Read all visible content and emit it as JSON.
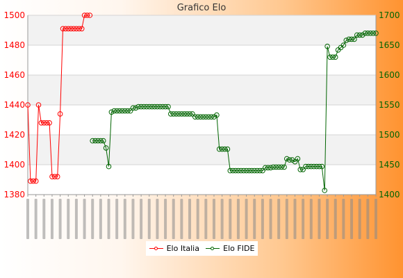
{
  "chart_data": {
    "type": "line",
    "title": "Grafico Elo",
    "xlabel": "",
    "ylabel": "",
    "grid": true,
    "legend_position": "bottom",
    "left_axis": {
      "ylim": [
        1380,
        1500
      ],
      "ticks": [
        1380,
        1400,
        1420,
        1440,
        1460,
        1480,
        1500
      ],
      "color": "#ff0000"
    },
    "right_axis": {
      "ylim": [
        1400,
        1700
      ],
      "ticks": [
        1400,
        1450,
        1500,
        1550,
        1600,
        1650,
        1700
      ],
      "color": "#006400"
    },
    "x_count": 130,
    "x_labels_note": "rotated date labels are illegible in the screenshot",
    "series": [
      {
        "name": "Elo Italia",
        "axis": "left",
        "color": "#ff0000",
        "points": [
          [
            0,
            1440
          ],
          [
            1,
            1389
          ],
          [
            2,
            1389
          ],
          [
            3,
            1389
          ],
          [
            4,
            1440
          ],
          [
            5,
            1428
          ],
          [
            6,
            1428
          ],
          [
            7,
            1428
          ],
          [
            8,
            1428
          ],
          [
            9,
            1392
          ],
          [
            10,
            1392
          ],
          [
            11,
            1392
          ],
          [
            12,
            1434
          ],
          [
            13,
            1491
          ],
          [
            14,
            1491
          ],
          [
            15,
            1491
          ],
          [
            16,
            1491
          ],
          [
            17,
            1491
          ],
          [
            18,
            1491
          ],
          [
            19,
            1491
          ],
          [
            20,
            1491
          ],
          [
            21,
            1500
          ],
          [
            22,
            1500
          ],
          [
            23,
            1500
          ]
        ]
      },
      {
        "name": "Elo FIDE",
        "axis": "right",
        "color": "#006400",
        "points": [
          [
            24,
            1490
          ],
          [
            25,
            1490
          ],
          [
            26,
            1490
          ],
          [
            27,
            1490
          ],
          [
            28,
            1490
          ],
          [
            29,
            1478
          ],
          [
            30,
            1447
          ],
          [
            31,
            1538
          ],
          [
            32,
            1540
          ],
          [
            33,
            1540
          ],
          [
            34,
            1540
          ],
          [
            35,
            1540
          ],
          [
            36,
            1540
          ],
          [
            37,
            1540
          ],
          [
            38,
            1540
          ],
          [
            39,
            1545
          ],
          [
            40,
            1545
          ],
          [
            41,
            1547
          ],
          [
            42,
            1547
          ],
          [
            43,
            1547
          ],
          [
            44,
            1547
          ],
          [
            45,
            1547
          ],
          [
            46,
            1547
          ],
          [
            47,
            1547
          ],
          [
            48,
            1547
          ],
          [
            49,
            1547
          ],
          [
            50,
            1547
          ],
          [
            51,
            1547
          ],
          [
            52,
            1547
          ],
          [
            53,
            1535
          ],
          [
            54,
            1535
          ],
          [
            55,
            1535
          ],
          [
            56,
            1535
          ],
          [
            57,
            1535
          ],
          [
            58,
            1535
          ],
          [
            59,
            1535
          ],
          [
            60,
            1535
          ],
          [
            61,
            1535
          ],
          [
            62,
            1530
          ],
          [
            63,
            1530
          ],
          [
            64,
            1530
          ],
          [
            65,
            1530
          ],
          [
            66,
            1530
          ],
          [
            67,
            1530
          ],
          [
            68,
            1530
          ],
          [
            69,
            1530
          ],
          [
            70,
            1533
          ],
          [
            71,
            1476
          ],
          [
            72,
            1476
          ],
          [
            73,
            1476
          ],
          [
            74,
            1476
          ],
          [
            75,
            1440
          ],
          [
            76,
            1440
          ],
          [
            77,
            1440
          ],
          [
            78,
            1440
          ],
          [
            79,
            1440
          ],
          [
            80,
            1440
          ],
          [
            81,
            1440
          ],
          [
            82,
            1440
          ],
          [
            83,
            1440
          ],
          [
            84,
            1440
          ],
          [
            85,
            1440
          ],
          [
            86,
            1440
          ],
          [
            87,
            1440
          ],
          [
            88,
            1445
          ],
          [
            89,
            1445
          ],
          [
            90,
            1445
          ],
          [
            91,
            1446
          ],
          [
            92,
            1446
          ],
          [
            93,
            1446
          ],
          [
            94,
            1446
          ],
          [
            95,
            1446
          ],
          [
            96,
            1460
          ],
          [
            97,
            1458
          ],
          [
            98,
            1458
          ],
          [
            99,
            1455
          ],
          [
            100,
            1460
          ],
          [
            101,
            1442
          ],
          [
            102,
            1442
          ],
          [
            103,
            1447
          ],
          [
            104,
            1447
          ],
          [
            105,
            1447
          ],
          [
            106,
            1447
          ],
          [
            107,
            1447
          ],
          [
            108,
            1447
          ],
          [
            109,
            1447
          ],
          [
            110,
            1407
          ],
          [
            111,
            1648
          ],
          [
            112,
            1630
          ],
          [
            113,
            1630
          ],
          [
            114,
            1630
          ],
          [
            115,
            1642
          ],
          [
            116,
            1646
          ],
          [
            117,
            1650
          ],
          [
            118,
            1658
          ],
          [
            119,
            1660
          ],
          [
            120,
            1660
          ],
          [
            121,
            1660
          ],
          [
            122,
            1667
          ],
          [
            123,
            1667
          ],
          [
            124,
            1667
          ],
          [
            125,
            1670
          ],
          [
            126,
            1670
          ],
          [
            127,
            1670
          ],
          [
            128,
            1670
          ],
          [
            129,
            1670
          ]
        ]
      }
    ]
  }
}
